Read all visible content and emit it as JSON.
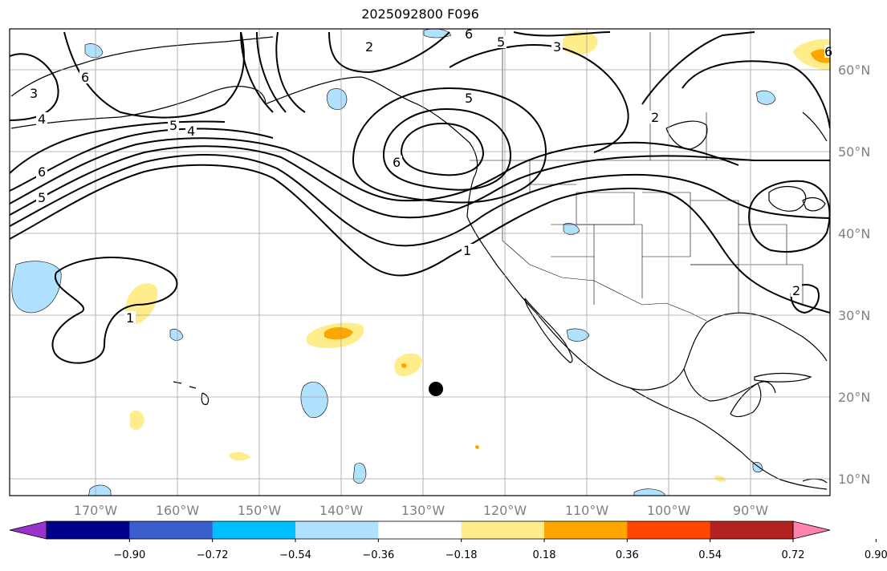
{
  "title": "2025092800 F096",
  "map": {
    "lon_ticks": [
      "170°W",
      "160°W",
      "150°W",
      "140°W",
      "130°W",
      "120°W",
      "110°W",
      "100°W",
      "90°W"
    ],
    "lat_ticks": [
      "60°N",
      "50°N",
      "40°N",
      "30°N",
      "20°N",
      "10°N"
    ],
    "contour_labels": [
      "6",
      "5",
      "4",
      "3",
      "2",
      "1"
    ],
    "marker": "storm-center-dot"
  },
  "colorbar": {
    "ticks": [
      "−0.90",
      "−0.72",
      "−0.54",
      "−0.36",
      "−0.18",
      "0.18",
      "0.36",
      "0.54",
      "0.72",
      "0.90"
    ],
    "colors": [
      "#9a32cd",
      "#00008b",
      "#3a5fcd",
      "#00bfff",
      "#b0e2ff",
      "#ffffff",
      "#ffec8b",
      "#ffa500",
      "#ff4500",
      "#b22222",
      "#ff82ab"
    ]
  },
  "colors": {
    "land_line": "#000000",
    "grid": "#a0a0a0",
    "pos_fill_1": "#ffec8b",
    "pos_fill_2": "#ffa500",
    "neg_fill_1": "#b0e2ff"
  }
}
